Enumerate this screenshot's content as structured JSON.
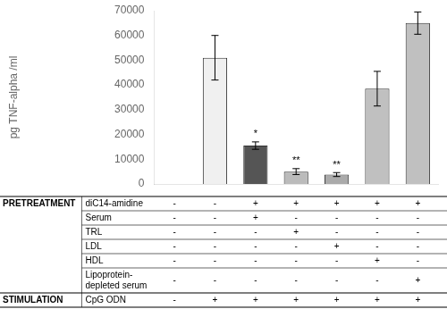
{
  "chart_data": {
    "type": "bar",
    "categories": [
      null,
      null,
      null,
      null,
      null,
      null,
      null
    ],
    "values": [
      0,
      51000,
      15500,
      5000,
      3800,
      38500,
      65000
    ],
    "errors": [
      0,
      9000,
      1500,
      1200,
      800,
      7000,
      4500
    ],
    "colors": [
      "white",
      "#f0f0f0",
      "#555555",
      "#bbbbbb",
      "#aaaaaa",
      "#c0c0c0",
      "#c0c0c0"
    ],
    "annotations": [
      null,
      null,
      "*",
      "**",
      "**",
      null,
      null
    ],
    "ylabel": "pg TNF-alpha /ml",
    "ylim": [
      0,
      70000
    ],
    "yticks": [
      0,
      10000,
      20000,
      30000,
      40000,
      50000,
      60000,
      70000
    ],
    "grid": false,
    "tick_labels": "y",
    "table": [
      {
        "section": "PRETREATMENT",
        "label": "diC14-amidine",
        "cells": [
          "-",
          "-",
          "+",
          "+",
          "+",
          "+",
          "+"
        ]
      },
      {
        "section": null,
        "label": "Serum",
        "cells": [
          "-",
          "-",
          "+",
          "-",
          "-",
          "-",
          "-"
        ]
      },
      {
        "section": null,
        "label": "TRL",
        "cells": [
          "-",
          "-",
          "-",
          "+",
          "-",
          "-",
          "-"
        ]
      },
      {
        "section": null,
        "label": "LDL",
        "cells": [
          "-",
          "-",
          "-",
          "-",
          "+",
          "-",
          "-"
        ]
      },
      {
        "section": null,
        "label": "HDL",
        "cells": [
          "-",
          "-",
          "-",
          "-",
          "-",
          "+",
          "-"
        ]
      },
      {
        "section": null,
        "label": "Lipoprotein-\ndepleted serum",
        "cells": [
          "-",
          "-",
          "-",
          "-",
          "-",
          "-",
          "+"
        ]
      },
      {
        "section": "STIMULATION",
        "label": "CpG ODN",
        "cells": [
          "-",
          "+",
          "+",
          "+",
          "+",
          "+",
          "+"
        ]
      }
    ]
  }
}
